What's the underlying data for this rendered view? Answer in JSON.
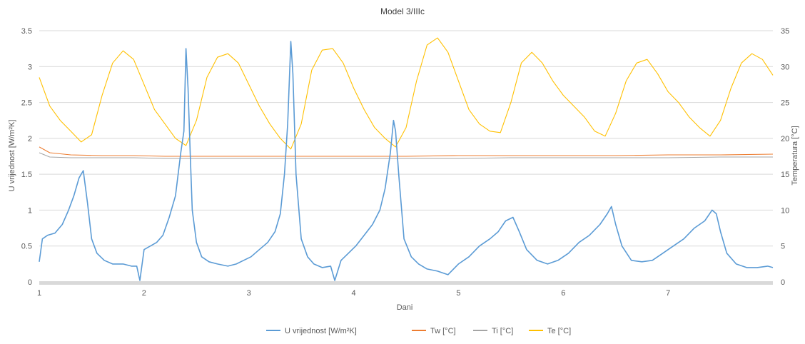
{
  "chart_data": {
    "type": "line",
    "title": "Model 3/IIIc",
    "xlabel": "Dani",
    "ylabel_left": "U vrijednost [W/m²K]",
    "ylabel_right": "Temperatura [°C]",
    "xlim": [
      1,
      8
    ],
    "ylim_left": [
      0,
      3.5
    ],
    "ylim_right": [
      0,
      35
    ],
    "x_ticks": [
      "1",
      "2",
      "3",
      "4",
      "5",
      "6",
      "7"
    ],
    "y_ticks_left": [
      "0",
      "0.5",
      "1",
      "1.5",
      "2",
      "2.5",
      "3",
      "3.5"
    ],
    "y_ticks_right": [
      "0",
      "5",
      "10",
      "15",
      "20",
      "25",
      "30",
      "35"
    ],
    "grid": "horizontal",
    "legend_position": "bottom",
    "series": [
      {
        "name": "U vrijednost [W/m²K]",
        "axis": "left",
        "color": "#5b9bd5",
        "x": [
          1.0,
          1.03,
          1.08,
          1.15,
          1.22,
          1.28,
          1.33,
          1.38,
          1.42,
          1.46,
          1.5,
          1.55,
          1.62,
          1.7,
          1.8,
          1.88,
          1.93,
          1.96,
          2.0,
          2.06,
          2.12,
          2.18,
          2.24,
          2.3,
          2.35,
          2.38,
          2.4,
          2.42,
          2.44,
          2.46,
          2.5,
          2.55,
          2.62,
          2.7,
          2.8,
          2.88,
          2.95,
          3.02,
          3.1,
          3.18,
          3.25,
          3.3,
          3.34,
          3.37,
          3.4,
          3.42,
          3.45,
          3.5,
          3.56,
          3.62,
          3.7,
          3.78,
          3.82,
          3.88,
          3.95,
          4.02,
          4.1,
          4.18,
          4.25,
          4.3,
          4.35,
          4.38,
          4.4,
          4.43,
          4.48,
          4.55,
          4.62,
          4.7,
          4.8,
          4.9,
          5.0,
          5.1,
          5.2,
          5.3,
          5.38,
          5.45,
          5.52,
          5.58,
          5.65,
          5.75,
          5.85,
          5.95,
          6.05,
          6.15,
          6.25,
          6.35,
          6.42,
          6.46,
          6.5,
          6.56,
          6.65,
          6.75,
          6.85,
          6.95,
          7.05,
          7.15,
          7.25,
          7.35,
          7.42,
          7.46,
          7.5,
          7.56,
          7.65,
          7.75,
          7.85,
          7.95,
          8.0
        ],
        "values": [
          0.28,
          0.6,
          0.65,
          0.68,
          0.8,
          1.0,
          1.2,
          1.45,
          1.55,
          1.1,
          0.6,
          0.4,
          0.3,
          0.25,
          0.25,
          0.22,
          0.22,
          0.02,
          0.45,
          0.5,
          0.55,
          0.65,
          0.9,
          1.2,
          1.8,
          2.1,
          3.25,
          2.7,
          1.8,
          1.0,
          0.55,
          0.35,
          0.28,
          0.25,
          0.22,
          0.25,
          0.3,
          0.35,
          0.45,
          0.55,
          0.7,
          0.95,
          1.5,
          2.2,
          3.35,
          2.9,
          1.5,
          0.6,
          0.35,
          0.25,
          0.2,
          0.22,
          0.02,
          0.3,
          0.4,
          0.5,
          0.65,
          0.8,
          1.0,
          1.3,
          1.8,
          2.25,
          2.1,
          1.5,
          0.6,
          0.35,
          0.25,
          0.18,
          0.15,
          0.1,
          0.25,
          0.35,
          0.5,
          0.6,
          0.7,
          0.85,
          0.9,
          0.7,
          0.45,
          0.3,
          0.25,
          0.3,
          0.4,
          0.55,
          0.65,
          0.8,
          0.95,
          1.05,
          0.8,
          0.5,
          0.3,
          0.28,
          0.3,
          0.4,
          0.5,
          0.6,
          0.75,
          0.85,
          1.0,
          0.95,
          0.7,
          0.4,
          0.25,
          0.2,
          0.2,
          0.22,
          0.2
        ]
      },
      {
        "name": "Tw [°C]",
        "axis": "right",
        "color": "#ed7d31",
        "x": [
          1.0,
          1.1,
          1.3,
          1.6,
          1.9,
          2.2,
          2.5,
          3.0,
          3.5,
          4.0,
          4.5,
          5.0,
          5.5,
          6.0,
          6.5,
          7.0,
          7.5,
          8.0
        ],
        "values": [
          18.8,
          18.0,
          17.7,
          17.6,
          17.6,
          17.5,
          17.5,
          17.5,
          17.5,
          17.5,
          17.5,
          17.6,
          17.6,
          17.6,
          17.6,
          17.7,
          17.7,
          17.8
        ]
      },
      {
        "name": "Ti [°C]",
        "axis": "right",
        "color": "#a5a5a5",
        "x": [
          1.0,
          1.1,
          1.3,
          1.6,
          1.9,
          2.2,
          2.5,
          3.0,
          3.5,
          4.0,
          4.5,
          5.0,
          5.5,
          6.0,
          6.5,
          7.0,
          7.5,
          8.0
        ],
        "values": [
          18.0,
          17.4,
          17.3,
          17.3,
          17.3,
          17.2,
          17.2,
          17.2,
          17.2,
          17.2,
          17.2,
          17.2,
          17.3,
          17.3,
          17.3,
          17.3,
          17.4,
          17.4
        ]
      },
      {
        "name": "Te [°C]",
        "axis": "right",
        "color": "#ffc000",
        "x": [
          1.0,
          1.1,
          1.2,
          1.3,
          1.4,
          1.5,
          1.6,
          1.7,
          1.8,
          1.9,
          2.0,
          2.1,
          2.2,
          2.3,
          2.4,
          2.5,
          2.6,
          2.7,
          2.8,
          2.9,
          3.0,
          3.1,
          3.2,
          3.3,
          3.4,
          3.5,
          3.6,
          3.7,
          3.8,
          3.9,
          4.0,
          4.1,
          4.2,
          4.3,
          4.4,
          4.5,
          4.6,
          4.7,
          4.8,
          4.9,
          5.0,
          5.1,
          5.2,
          5.3,
          5.4,
          5.5,
          5.6,
          5.7,
          5.8,
          5.9,
          6.0,
          6.1,
          6.2,
          6.3,
          6.4,
          6.5,
          6.6,
          6.7,
          6.8,
          6.9,
          7.0,
          7.1,
          7.2,
          7.3,
          7.4,
          7.5,
          7.6,
          7.7,
          7.8,
          7.9,
          8.0
        ],
        "values": [
          28.5,
          24.5,
          22.5,
          21.0,
          19.5,
          20.5,
          26.0,
          30.5,
          32.2,
          31.0,
          27.5,
          24.0,
          22.0,
          20.0,
          19.0,
          22.5,
          28.5,
          31.3,
          31.8,
          30.5,
          27.5,
          24.5,
          22.0,
          20.0,
          18.5,
          22.0,
          29.5,
          32.3,
          32.5,
          30.5,
          27.0,
          24.0,
          21.5,
          20.0,
          18.8,
          21.5,
          28.0,
          33.0,
          34.0,
          32.0,
          28.0,
          24.0,
          22.0,
          21.0,
          20.8,
          25.0,
          30.5,
          32.0,
          30.5,
          28.0,
          26.0,
          24.5,
          23.0,
          21.0,
          20.3,
          23.5,
          28.0,
          30.5,
          31.0,
          29.0,
          26.5,
          25.0,
          23.0,
          21.5,
          20.3,
          22.5,
          27.0,
          30.5,
          31.8,
          31.0,
          28.8
        ]
      }
    ]
  }
}
